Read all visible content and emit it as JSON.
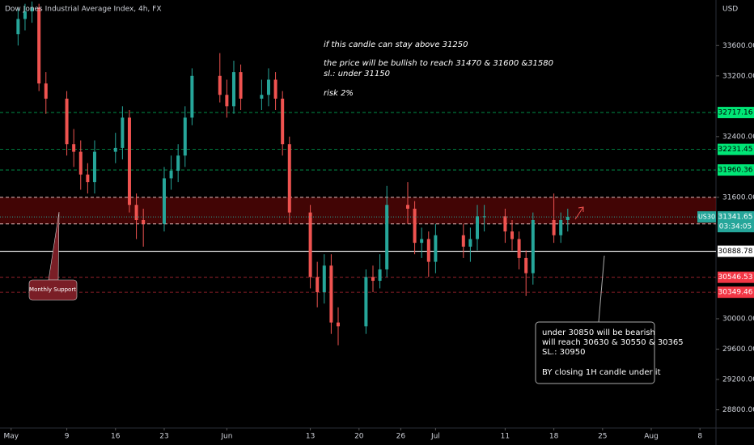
{
  "chart_data": {
    "type": "candlestick",
    "title": "Dow Jones Industrial Average Index, 4h, FX",
    "currency": "USD",
    "up_color": "#26a69a",
    "down_color": "#ef5350",
    "xlim": [
      -0.6,
      102.3
    ],
    "xticks": [
      {
        "value": 1,
        "label": "May"
      },
      9,
      16,
      23,
      {
        "value": 32,
        "label": "Jun"
      },
      {
        "value": 44,
        "label": "13"
      },
      {
        "value": 51,
        "label": "20"
      },
      {
        "value": 57,
        "label": "26"
      },
      {
        "value": 62,
        "label": "Jul"
      },
      {
        "value": 72,
        "label": "11"
      },
      {
        "value": 79,
        "label": "18"
      },
      {
        "value": 86,
        "label": "25"
      },
      {
        "value": 93,
        "label": "Aug"
      },
      {
        "value": 100,
        "label": "8"
      }
    ],
    "ylim": [
      28560,
      34200
    ],
    "yticks": [
      {
        "value": 33600,
        "label": "33600.00"
      },
      {
        "value": 33200,
        "label": "33200.00"
      },
      {
        "value": 32400,
        "label": "32400.00"
      },
      {
        "value": 31600,
        "label": "31600.00"
      },
      {
        "value": 30000,
        "label": "30000.00"
      },
      {
        "value": 29600,
        "label": "29600.00"
      },
      {
        "value": 29200,
        "label": "29200.00"
      },
      {
        "value": 28800,
        "label": "28800.00"
      }
    ],
    "x": [
      2,
      3,
      4,
      5,
      6,
      9,
      10,
      11,
      12,
      13,
      16,
      17,
      18,
      19,
      20,
      23,
      24,
      25,
      26,
      27,
      31,
      32,
      33,
      34,
      37,
      38,
      39,
      40,
      41,
      44,
      45,
      46,
      47,
      48,
      52,
      53,
      54,
      55,
      58,
      59,
      60,
      61,
      62,
      66,
      67,
      68,
      69,
      72,
      73,
      74,
      75,
      76,
      79,
      80,
      81
    ],
    "open": [
      33750,
      33950,
      34050,
      34100,
      33100,
      32900,
      32300,
      32200,
      31900,
      31800,
      32200,
      32250,
      32650,
      31500,
      31300,
      31250,
      31850,
      31950,
      32150,
      32650,
      33200,
      32950,
      32800,
      33250,
      32900,
      32950,
      33150,
      32900,
      32300,
      31400,
      30550,
      30350,
      30700,
      29950,
      29900,
      30550,
      30500,
      30650,
      31500,
      31450,
      31000,
      31050,
      30750,
      31100,
      30950,
      31050,
      31350,
      31350,
      31150,
      31050,
      30800,
      30600,
      31300,
      31100,
      31300
    ],
    "high": [
      34100,
      34150,
      34180,
      34150,
      33250,
      33000,
      32500,
      32350,
      32050,
      32350,
      32450,
      32800,
      32750,
      31650,
      31450,
      32000,
      32150,
      32300,
      32800,
      33300,
      33500,
      33150,
      33400,
      33350,
      33150,
      33300,
      33250,
      33000,
      32400,
      31500,
      30750,
      30850,
      30850,
      30150,
      30650,
      30700,
      30850,
      31750,
      31800,
      31550,
      31200,
      31150,
      31250,
      31250,
      31200,
      31500,
      31500,
      31450,
      31300,
      31150,
      30900,
      31400,
      31650,
      31400,
      31450
    ],
    "low": [
      33600,
      33800,
      33900,
      33000,
      32700,
      32150,
      32000,
      31700,
      31650,
      31650,
      32050,
      32100,
      31400,
      31050,
      30950,
      31150,
      31700,
      31800,
      32000,
      32550,
      32850,
      32650,
      32700,
      32750,
      32750,
      32800,
      32750,
      32150,
      31250,
      30400,
      30150,
      30200,
      29800,
      29650,
      29800,
      30350,
      30400,
      30550,
      31250,
      30850,
      30800,
      30550,
      30600,
      30800,
      30750,
      30900,
      31150,
      31000,
      30900,
      30650,
      30300,
      30450,
      31000,
      31000,
      31150
    ],
    "close": [
      33950,
      34050,
      34100,
      33100,
      32900,
      32300,
      32200,
      31900,
      31800,
      32200,
      32250,
      32650,
      31500,
      31300,
      31250,
      31850,
      31950,
      32150,
      32650,
      33200,
      32950,
      32800,
      33250,
      32900,
      32950,
      33150,
      32900,
      32300,
      31400,
      30550,
      30350,
      30700,
      29950,
      29900,
      30550,
      30500,
      30650,
      31500,
      31450,
      31000,
      31050,
      30750,
      31100,
      30950,
      31050,
      31350,
      31350,
      31150,
      31050,
      30800,
      30600,
      31300,
      31100,
      31300,
      31341.65
    ],
    "zone": [
      31250,
      31600
    ],
    "levels": [
      {
        "value": 32717.16,
        "color": "#00e676",
        "text_color": "#000000"
      },
      {
        "value": 32231.45,
        "color": "#00e676",
        "text_color": "#000000"
      },
      {
        "value": 31960.36,
        "color": "#00e676",
        "text_color": "#000000"
      },
      {
        "value": 30888.78,
        "color": "#ffffff",
        "text_color": "#000000"
      },
      {
        "value": 30546.53,
        "color": "#f23645",
        "text_color": "#ffffff"
      },
      {
        "value": 30349.46,
        "color": "#f23645",
        "text_color": "#ffffff"
      }
    ],
    "symbol": "US30",
    "price": 31341.65,
    "countdown": "03:34:05",
    "annotations": {
      "bullish": [
        "if this candle can stay above 31250",
        "the price will be bullish to reach 31470 & 31600 &31580",
        "sl.: under 31150",
        "risk 2%"
      ],
      "bearish": [
        "under 30850 will be bearish",
        "will reach 30630 & 30550 & 30365",
        "SL.: 30950",
        "BY closing 1H candle under it"
      ],
      "support": "Monthly Support"
    }
  }
}
